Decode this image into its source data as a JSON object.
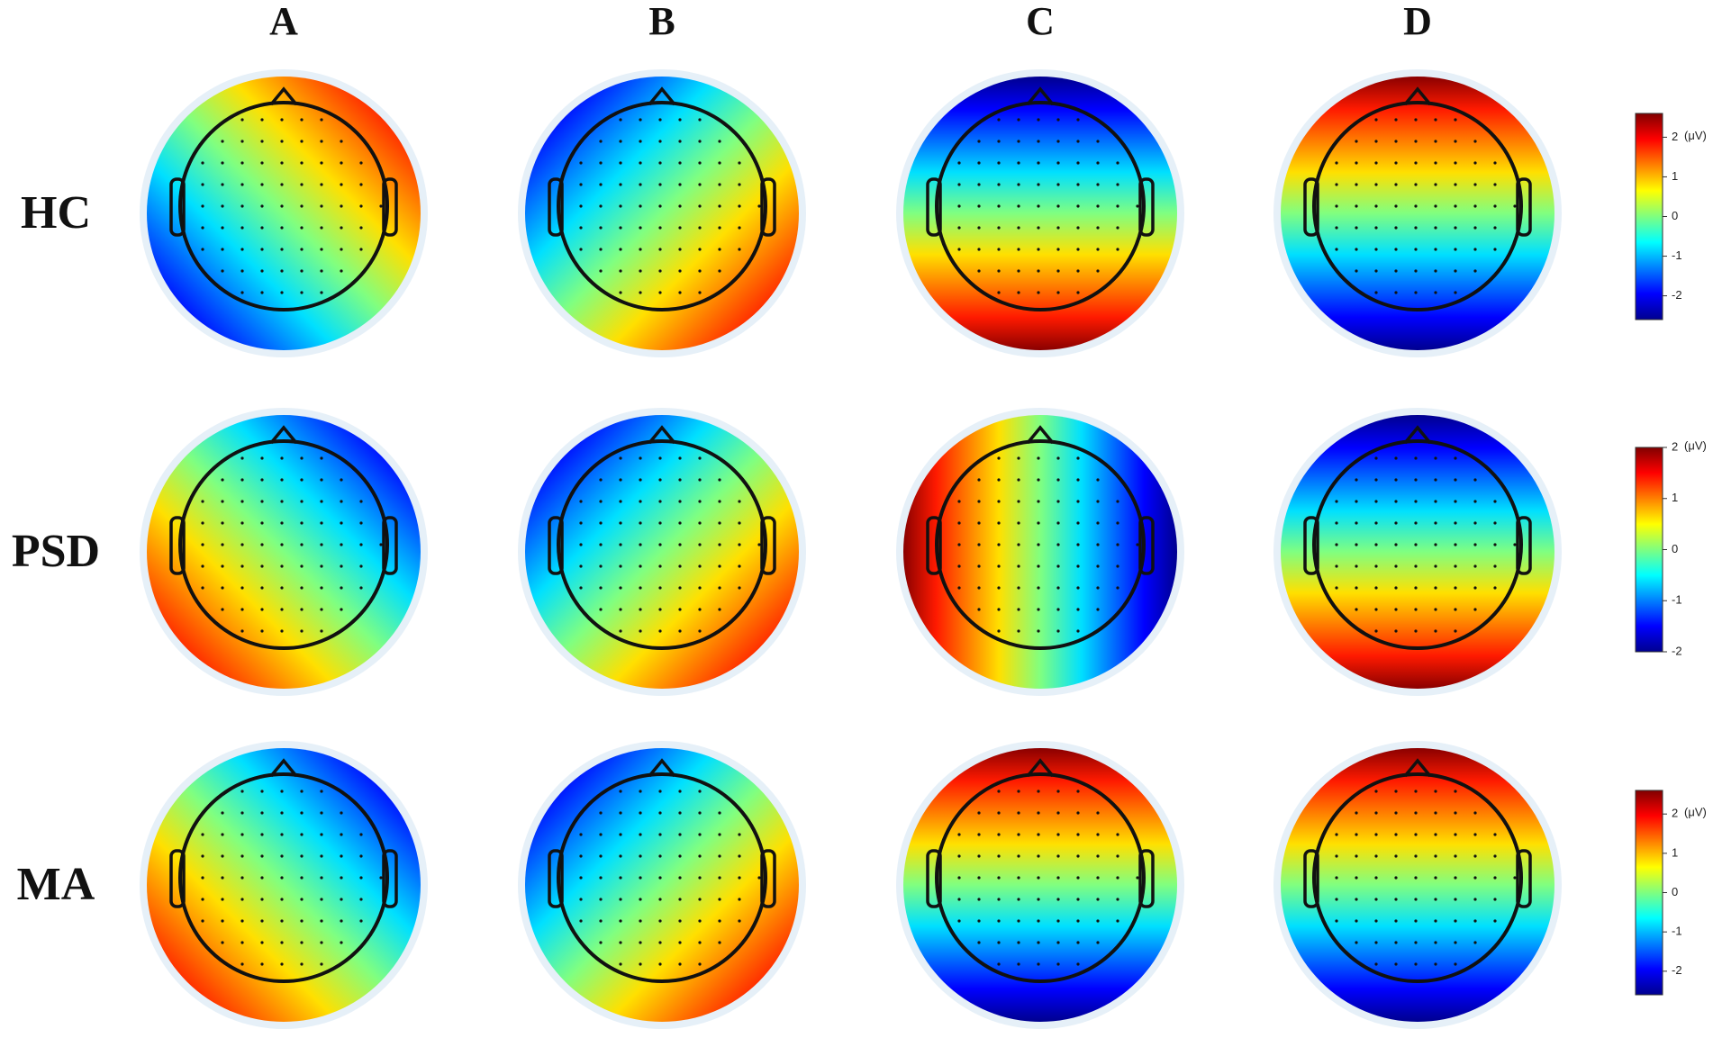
{
  "columns": [
    "A",
    "B",
    "C",
    "D"
  ],
  "rows": [
    "HC",
    "PSD",
    "MA"
  ],
  "colorbars": [
    {
      "range": [
        -2.6,
        2.6
      ],
      "ticks": [
        2,
        1,
        0,
        -1,
        -2
      ],
      "unit": "(μV)"
    },
    {
      "range": [
        -2,
        2
      ],
      "ticks": [
        2,
        1,
        0,
        -1,
        -2
      ],
      "unit": "(μV)"
    },
    {
      "range": [
        -2.6,
        2.6
      ],
      "ticks": [
        2,
        1,
        0,
        -1,
        -2
      ],
      "unit": "(μV)"
    }
  ]
}
